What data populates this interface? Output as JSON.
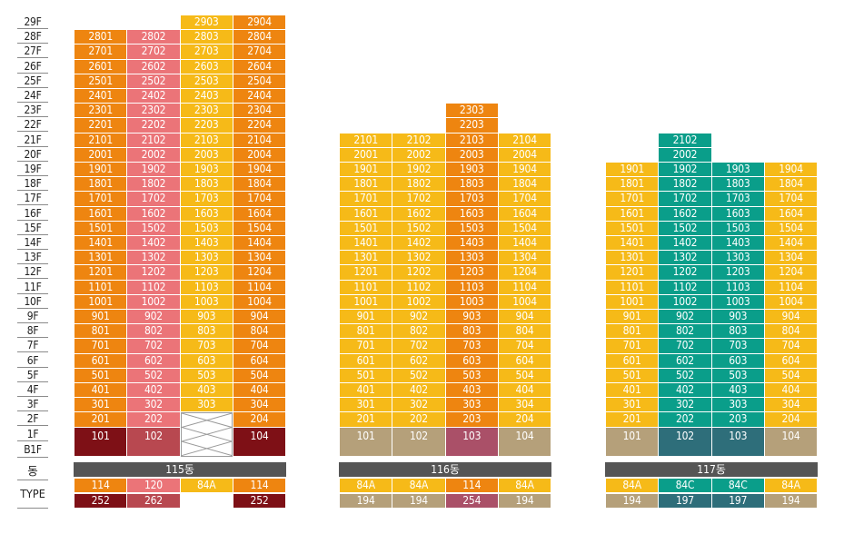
{
  "colors": {
    "orange": "#EE8510",
    "pink": "#EB7478",
    "yellow": "#F6BA18",
    "teal": "#0A9E8A",
    "darkred": "#7E1016",
    "rose": "#B84850",
    "khaki": "#B5A07A",
    "mauve": "#AA5068",
    "slate": "#2E6E7A",
    "label": "#555555"
  },
  "floor_labels": [
    "29F",
    "28F",
    "27F",
    "26F",
    "25F",
    "24F",
    "23F",
    "22F",
    "21F",
    "20F",
    "19F",
    "18F",
    "17F",
    "16F",
    "15F",
    "14F",
    "13F",
    "12F",
    "11F",
    "10F",
    "9F",
    "8F",
    "7F",
    "6F",
    "5F",
    "4F",
    "3F",
    "2F",
    "1F",
    "B1F"
  ],
  "row_labels": {
    "dong": "동",
    "type": "TYPE"
  },
  "buildings": [
    {
      "name": "115동",
      "columns": [
        {
          "line": "01",
          "color": "orange",
          "top_floor": 28,
          "base_label": "101",
          "base_color": "darkred",
          "type": "114",
          "area": "252",
          "type_color": "orange",
          "area_color": "darkred"
        },
        {
          "line": "02",
          "color": "pink",
          "top_floor": 28,
          "base_label": "102",
          "base_color": "rose",
          "type": "120",
          "area": "262",
          "type_color": "pink",
          "area_color": "rose"
        },
        {
          "line": "03",
          "color": "yellow",
          "top_floor": 29,
          "base_label": "",
          "base_color": "empty",
          "skip_floor2": true,
          "type": "84A",
          "area": "",
          "type_color": "yellow",
          "area_color": "none"
        },
        {
          "line": "04",
          "color": "orange",
          "top_floor": 29,
          "base_label": "104",
          "base_color": "darkred",
          "type": "114",
          "area": "252",
          "type_color": "orange",
          "area_color": "darkred"
        }
      ]
    },
    {
      "name": "116동",
      "columns": [
        {
          "line": "01",
          "color": "yellow",
          "top_floor": 21,
          "base_label": "101",
          "base_color": "khaki",
          "type": "84A",
          "area": "194",
          "type_color": "yellow",
          "area_color": "khaki"
        },
        {
          "line": "02",
          "color": "yellow",
          "top_floor": 21,
          "base_label": "102",
          "base_color": "khaki",
          "type": "84A",
          "area": "194",
          "type_color": "yellow",
          "area_color": "khaki"
        },
        {
          "line": "03",
          "color": "orange",
          "top_floor": 23,
          "base_label": "103",
          "base_color": "mauve",
          "type": "114",
          "area": "254",
          "type_color": "orange",
          "area_color": "mauve"
        },
        {
          "line": "04",
          "color": "yellow",
          "top_floor": 21,
          "base_label": "104",
          "base_color": "khaki",
          "type": "84A",
          "area": "194",
          "type_color": "yellow",
          "area_color": "khaki"
        }
      ]
    },
    {
      "name": "117동",
      "columns": [
        {
          "line": "01",
          "color": "yellow",
          "top_floor": 19,
          "base_label": "101",
          "base_color": "khaki",
          "type": "84A",
          "area": "194",
          "type_color": "yellow",
          "area_color": "khaki"
        },
        {
          "line": "02",
          "color": "teal",
          "top_floor": 21,
          "base_label": "102",
          "base_color": "slate",
          "type": "84C",
          "area": "197",
          "type_color": "teal",
          "area_color": "slate"
        },
        {
          "line": "03",
          "color": "teal",
          "top_floor": 19,
          "base_label": "103",
          "base_color": "slate",
          "type": "84C",
          "area": "197",
          "type_color": "teal",
          "area_color": "slate"
        },
        {
          "line": "04",
          "color": "yellow",
          "top_floor": 19,
          "base_label": "104",
          "base_color": "khaki",
          "type": "84A",
          "area": "194",
          "type_color": "yellow",
          "area_color": "khaki"
        }
      ]
    }
  ]
}
